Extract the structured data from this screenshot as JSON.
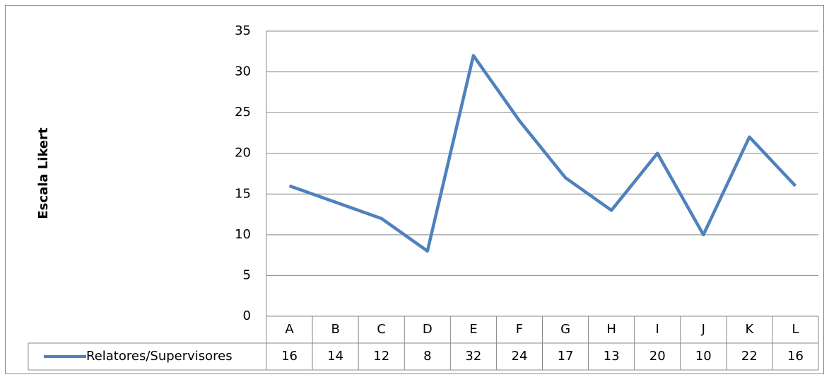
{
  "chart_data": {
    "type": "line",
    "y_label": "Escala Likert",
    "categories": [
      "A",
      "B",
      "C",
      "D",
      "E",
      "F",
      "G",
      "H",
      "I",
      "J",
      "K",
      "L"
    ],
    "series": [
      {
        "name": "Relatores/Supervisores",
        "color": "#4f81bd",
        "values": [
          16,
          14,
          12,
          8,
          32,
          24,
          17,
          13,
          20,
          10,
          22,
          16
        ]
      }
    ],
    "ylim": [
      0,
      35
    ],
    "yticks": [
      0,
      5,
      10,
      15,
      20,
      25,
      30,
      35
    ],
    "grid": true,
    "legend": "data-table"
  }
}
